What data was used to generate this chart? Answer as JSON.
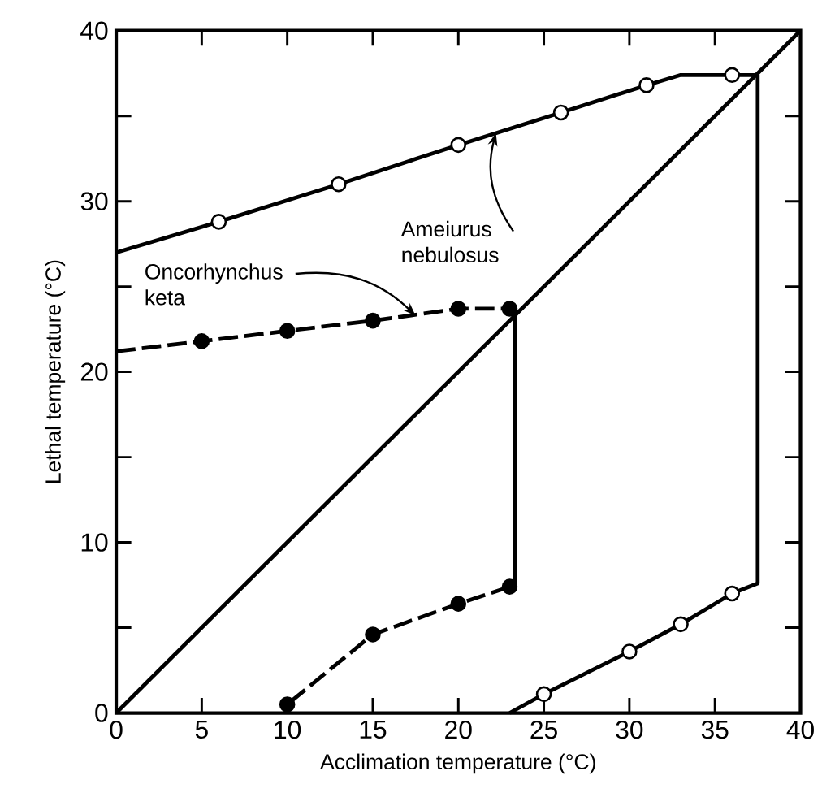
{
  "chart_data": {
    "type": "line",
    "xlabel": "Acclimation temperature (°C)",
    "ylabel": "Lethal temperature (°C)",
    "xlim": [
      0,
      40
    ],
    "ylim": [
      0,
      40
    ],
    "xticks": [
      0,
      5,
      10,
      15,
      20,
      25,
      30,
      35,
      40
    ],
    "yticks": [
      0,
      {
        "value": 5,
        "label": null
      },
      10,
      {
        "value": 15,
        "label": null
      },
      20,
      {
        "value": 25,
        "label": null
      },
      30,
      {
        "value": 35,
        "label": null
      },
      40
    ],
    "grid": false,
    "series": [
      {
        "type": "line",
        "color": "#000000",
        "marker": "none",
        "line_style": "solid",
        "x": [
          0,
          40
        ],
        "values": [
          0,
          40
        ]
      },
      {
        "type": "line",
        "color": "#000000",
        "marker": "none",
        "line_style": "solid",
        "x": [
          0,
          6,
          13,
          20,
          26,
          31,
          33,
          37.5,
          37.5,
          36,
          33,
          30,
          25,
          23
        ],
        "values": [
          27,
          28.8,
          31,
          33.3,
          35.2,
          36.8,
          37.4,
          37.4,
          7.6,
          7,
          5.2,
          3.6,
          1.1,
          0
        ]
      },
      {
        "type": "scatter",
        "color": "#ffffff",
        "marker": "circle",
        "x": [
          6,
          13,
          20,
          26,
          31,
          36,
          36,
          33,
          30,
          25
        ],
        "values": [
          28.8,
          31,
          33.3,
          35.2,
          36.8,
          37.4,
          7,
          5.2,
          3.6,
          1.1
        ]
      },
      {
        "type": "line",
        "color": "#000000",
        "marker": "none",
        "line_style": "dashed",
        "x": [
          0,
          5,
          10,
          15,
          20,
          23
        ],
        "values": [
          21.2,
          21.8,
          22.4,
          23,
          23.7,
          23.7
        ]
      },
      {
        "type": "line",
        "color": "#000000",
        "marker": "none",
        "line_style": "solid",
        "x": [
          23.3,
          23.3
        ],
        "values": [
          23.7,
          7.4
        ]
      },
      {
        "type": "line",
        "color": "#000000",
        "marker": "none",
        "line_style": "dashed",
        "x": [
          23,
          20,
          15,
          10
        ],
        "values": [
          7.4,
          6.4,
          4.6,
          0.5
        ]
      },
      {
        "type": "scatter",
        "color": "#000000",
        "marker": "circle",
        "x": [
          5,
          10,
          15,
          20,
          23,
          23,
          20,
          15,
          10
        ],
        "values": [
          21.8,
          22.4,
          23,
          23.7,
          23.7,
          7.4,
          6.4,
          4.6,
          0.5
        ]
      }
    ],
    "annotations": [
      {
        "text": "Ameiurus nebulosus",
        "x": 22.2,
        "y": 34
      },
      {
        "text": "Oncorhynchus keta",
        "x": 17.5,
        "y": 23.3
      }
    ]
  }
}
